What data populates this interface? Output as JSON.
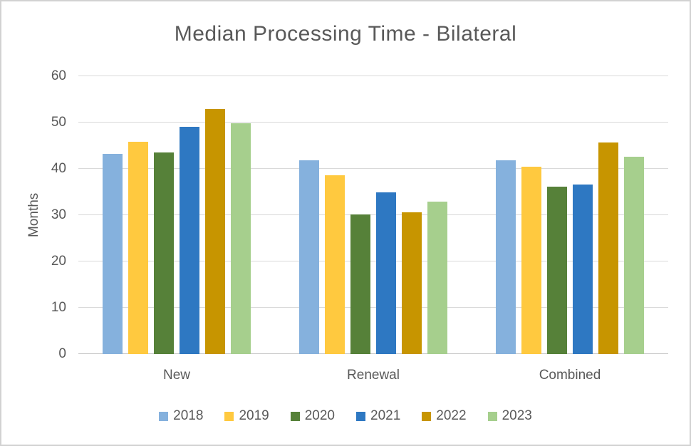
{
  "chart_data": {
    "type": "bar",
    "title": "Median Processing Time - Bilateral",
    "ylabel": "Months",
    "xlabel": "",
    "categories": [
      "New",
      "Renewal",
      "Combined"
    ],
    "series": [
      {
        "name": "2018",
        "color": "#85B1DD",
        "values": [
          43.2,
          41.9,
          41.9
        ]
      },
      {
        "name": "2019",
        "color": "#FFC93F",
        "values": [
          45.8,
          38.6,
          40.5
        ]
      },
      {
        "name": "2020",
        "color": "#568139",
        "values": [
          43.6,
          30.2,
          36.2
        ]
      },
      {
        "name": "2021",
        "color": "#2E78C2",
        "values": [
          49.1,
          34.9,
          36.6
        ]
      },
      {
        "name": "2022",
        "color": "#C79500",
        "values": [
          52.9,
          30.6,
          45.7
        ]
      },
      {
        "name": "2023",
        "color": "#A6CF8D",
        "values": [
          49.9,
          33.0,
          42.6
        ]
      }
    ],
    "ylim": [
      0,
      60
    ],
    "yticks": [
      0,
      10,
      20,
      30,
      40,
      50,
      60
    ],
    "grid": true,
    "legend_position": "bottom",
    "colors": {
      "text": "#595959",
      "gridline": "#D9D9D9",
      "axis_line": "#C3C3C3",
      "frame_border": "#D2D2D2",
      "background": "#FFFFFF"
    }
  }
}
